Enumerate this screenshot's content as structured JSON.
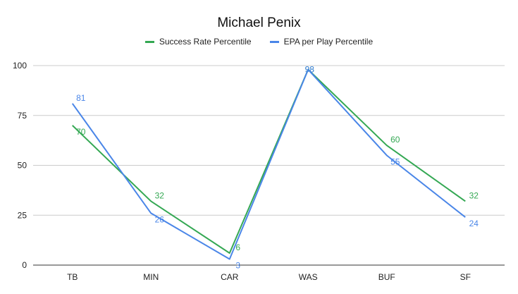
{
  "chart_data": {
    "type": "line",
    "title": "Michael Penix",
    "categories": [
      "TB",
      "MIN",
      "CAR",
      "WAS",
      "BUF",
      "SF"
    ],
    "series": [
      {
        "name": "Success Rate Percentile",
        "color": "#34a853",
        "values": [
          70,
          32,
          6,
          98,
          60,
          32
        ]
      },
      {
        "name": "EPA per Play Percentile",
        "color": "#4a86e8",
        "values": [
          81,
          26,
          3,
          98,
          55,
          24
        ]
      }
    ],
    "ylim": [
      0,
      100
    ],
    "yticks": [
      0,
      25,
      50,
      75,
      100
    ],
    "grid": true,
    "legend": "top",
    "data_labels": true
  }
}
